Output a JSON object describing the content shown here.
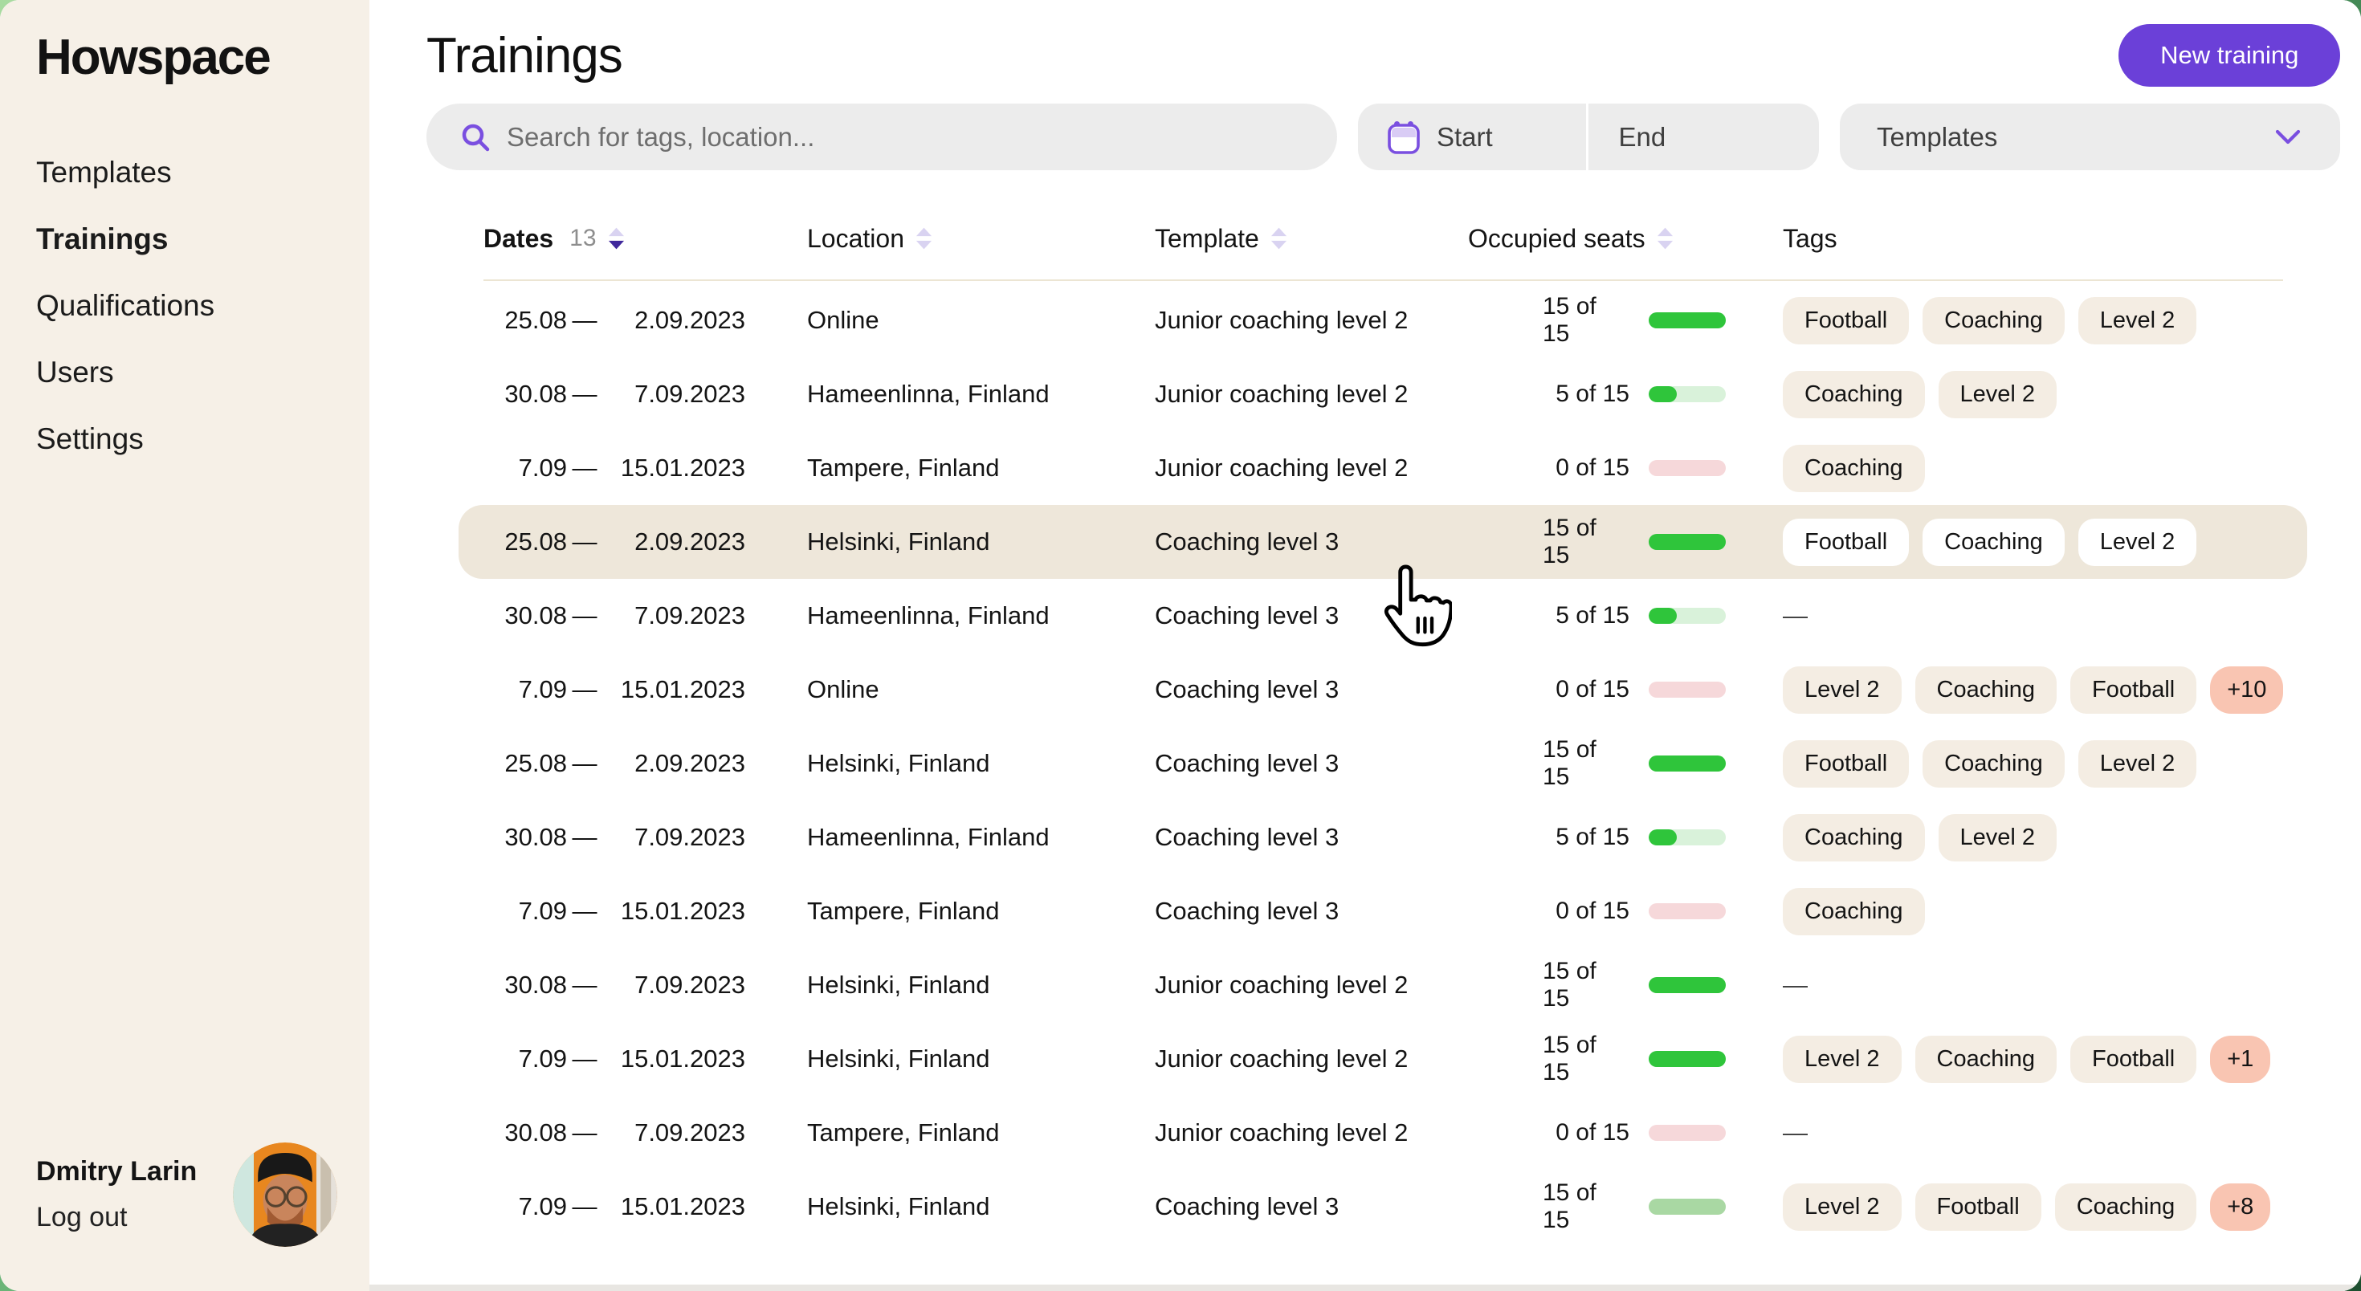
{
  "app": {
    "logo": "Howspace"
  },
  "sidebar": {
    "items": [
      {
        "label": "Templates",
        "active": false
      },
      {
        "label": "Trainings",
        "active": true
      },
      {
        "label": "Qualifications",
        "active": false
      },
      {
        "label": "Users",
        "active": false
      },
      {
        "label": "Settings",
        "active": false
      }
    ],
    "user": {
      "name": "Dmitry Larin",
      "logout_label": "Log out"
    }
  },
  "header": {
    "title": "Trainings",
    "new_training_label": "New training"
  },
  "filters": {
    "search_placeholder": "Search for tags, location...",
    "start_label": "Start",
    "end_label": "End",
    "templates_label": "Templates"
  },
  "table": {
    "columns": [
      {
        "label": "Dates",
        "count": "13",
        "sortable": true,
        "sort": "desc"
      },
      {
        "label": "Location",
        "sortable": true
      },
      {
        "label": "Template",
        "sortable": true
      },
      {
        "label": "Occupied seats",
        "sortable": true
      },
      {
        "label": "Tags",
        "sortable": false
      }
    ],
    "rows": [
      {
        "date_start": "25.08",
        "date_end": "2.09.2023",
        "location": "Online",
        "template": "Junior coaching level 2",
        "seats": "15 of 15",
        "seats_state": "full",
        "tags": [
          "Football",
          "Coaching",
          "Level 2"
        ],
        "more": null,
        "highlighted": false
      },
      {
        "date_start": "30.08",
        "date_end": "7.09.2023",
        "location": "Hameenlinna, Finland",
        "template": "Junior coaching level 2",
        "seats": "5 of 15",
        "seats_state": "partial",
        "tags": [
          "Coaching",
          "Level 2"
        ],
        "more": null,
        "highlighted": false
      },
      {
        "date_start": "7.09",
        "date_end": "15.01.2023",
        "location": "Tampere, Finland",
        "template": "Junior coaching level 2",
        "seats": "0 of 15",
        "seats_state": "empty",
        "tags": [
          "Coaching"
        ],
        "more": null,
        "highlighted": false
      },
      {
        "date_start": "25.08",
        "date_end": "2.09.2023",
        "location": "Helsinki, Finland",
        "template": "Coaching level 3",
        "seats": "15 of 15",
        "seats_state": "full",
        "tags": [
          "Football",
          "Coaching",
          "Level 2"
        ],
        "more": null,
        "highlighted": true
      },
      {
        "date_start": "30.08",
        "date_end": "7.09.2023",
        "location": "Hameenlinna, Finland",
        "template": "Coaching level 3",
        "seats": "5 of 15",
        "seats_state": "partial",
        "tags": [],
        "more": null,
        "highlighted": false
      },
      {
        "date_start": "7.09",
        "date_end": "15.01.2023",
        "location": "Online",
        "template": "Coaching level 3",
        "seats": "0 of 15",
        "seats_state": "empty",
        "tags": [
          "Level 2",
          "Coaching",
          "Football"
        ],
        "more": "+10",
        "highlighted": false
      },
      {
        "date_start": "25.08",
        "date_end": "2.09.2023",
        "location": "Helsinki, Finland",
        "template": "Coaching level 3",
        "seats": "15 of 15",
        "seats_state": "full",
        "tags": [
          "Football",
          "Coaching",
          "Level 2"
        ],
        "more": null,
        "highlighted": false
      },
      {
        "date_start": "30.08",
        "date_end": "7.09.2023",
        "location": "Hameenlinna, Finland",
        "template": "Coaching level 3",
        "seats": "5 of 15",
        "seats_state": "partial",
        "tags": [
          "Coaching",
          "Level 2"
        ],
        "more": null,
        "highlighted": false
      },
      {
        "date_start": "7.09",
        "date_end": "15.01.2023",
        "location": "Tampere, Finland",
        "template": "Coaching level 3",
        "seats": "0 of 15",
        "seats_state": "empty",
        "tags": [
          "Coaching"
        ],
        "more": null,
        "highlighted": false
      },
      {
        "date_start": "30.08",
        "date_end": "7.09.2023",
        "location": "Helsinki, Finland",
        "template": "Junior coaching level 2",
        "seats": "15 of 15",
        "seats_state": "full",
        "tags": [],
        "more": null,
        "highlighted": false
      },
      {
        "date_start": "7.09",
        "date_end": "15.01.2023",
        "location": "Helsinki, Finland",
        "template": "Junior coaching level 2",
        "seats": "15 of 15",
        "seats_state": "full",
        "tags": [
          "Level 2",
          "Coaching",
          "Football"
        ],
        "more": "+1",
        "highlighted": false
      },
      {
        "date_start": "30.08",
        "date_end": "7.09.2023",
        "location": "Tampere, Finland",
        "template": "Junior coaching level 2",
        "seats": "0 of 15",
        "seats_state": "empty",
        "tags": [],
        "more": null,
        "highlighted": false
      },
      {
        "date_start": "7.09",
        "date_end": "15.01.2023",
        "location": "Helsinki, Finland",
        "template": "Coaching level 3",
        "seats": "15 of 15",
        "seats_state": "muted",
        "tags": [
          "Level 2",
          "Football",
          "Coaching"
        ],
        "more": "+8",
        "highlighted": false
      }
    ],
    "empty_tags_dash": "—",
    "date_separator": "—"
  },
  "colors": {
    "accent_purple": "#6b40d8",
    "icon_purple": "#7a4fe0",
    "sidebar_bg": "#f6f0e7",
    "highlight_row_bg": "#eee7da",
    "tag_bg": "#f4ede3",
    "tag_more_bg": "#f9c5b2",
    "seat_full_green": "#2fc53b",
    "seat_partial_track": "#d9f2da",
    "seat_empty_pink": "#f6d8da",
    "seat_muted_green": "#a9d8a3",
    "sort_active": "#40289c",
    "sort_inactive": "#d9d3f1"
  }
}
